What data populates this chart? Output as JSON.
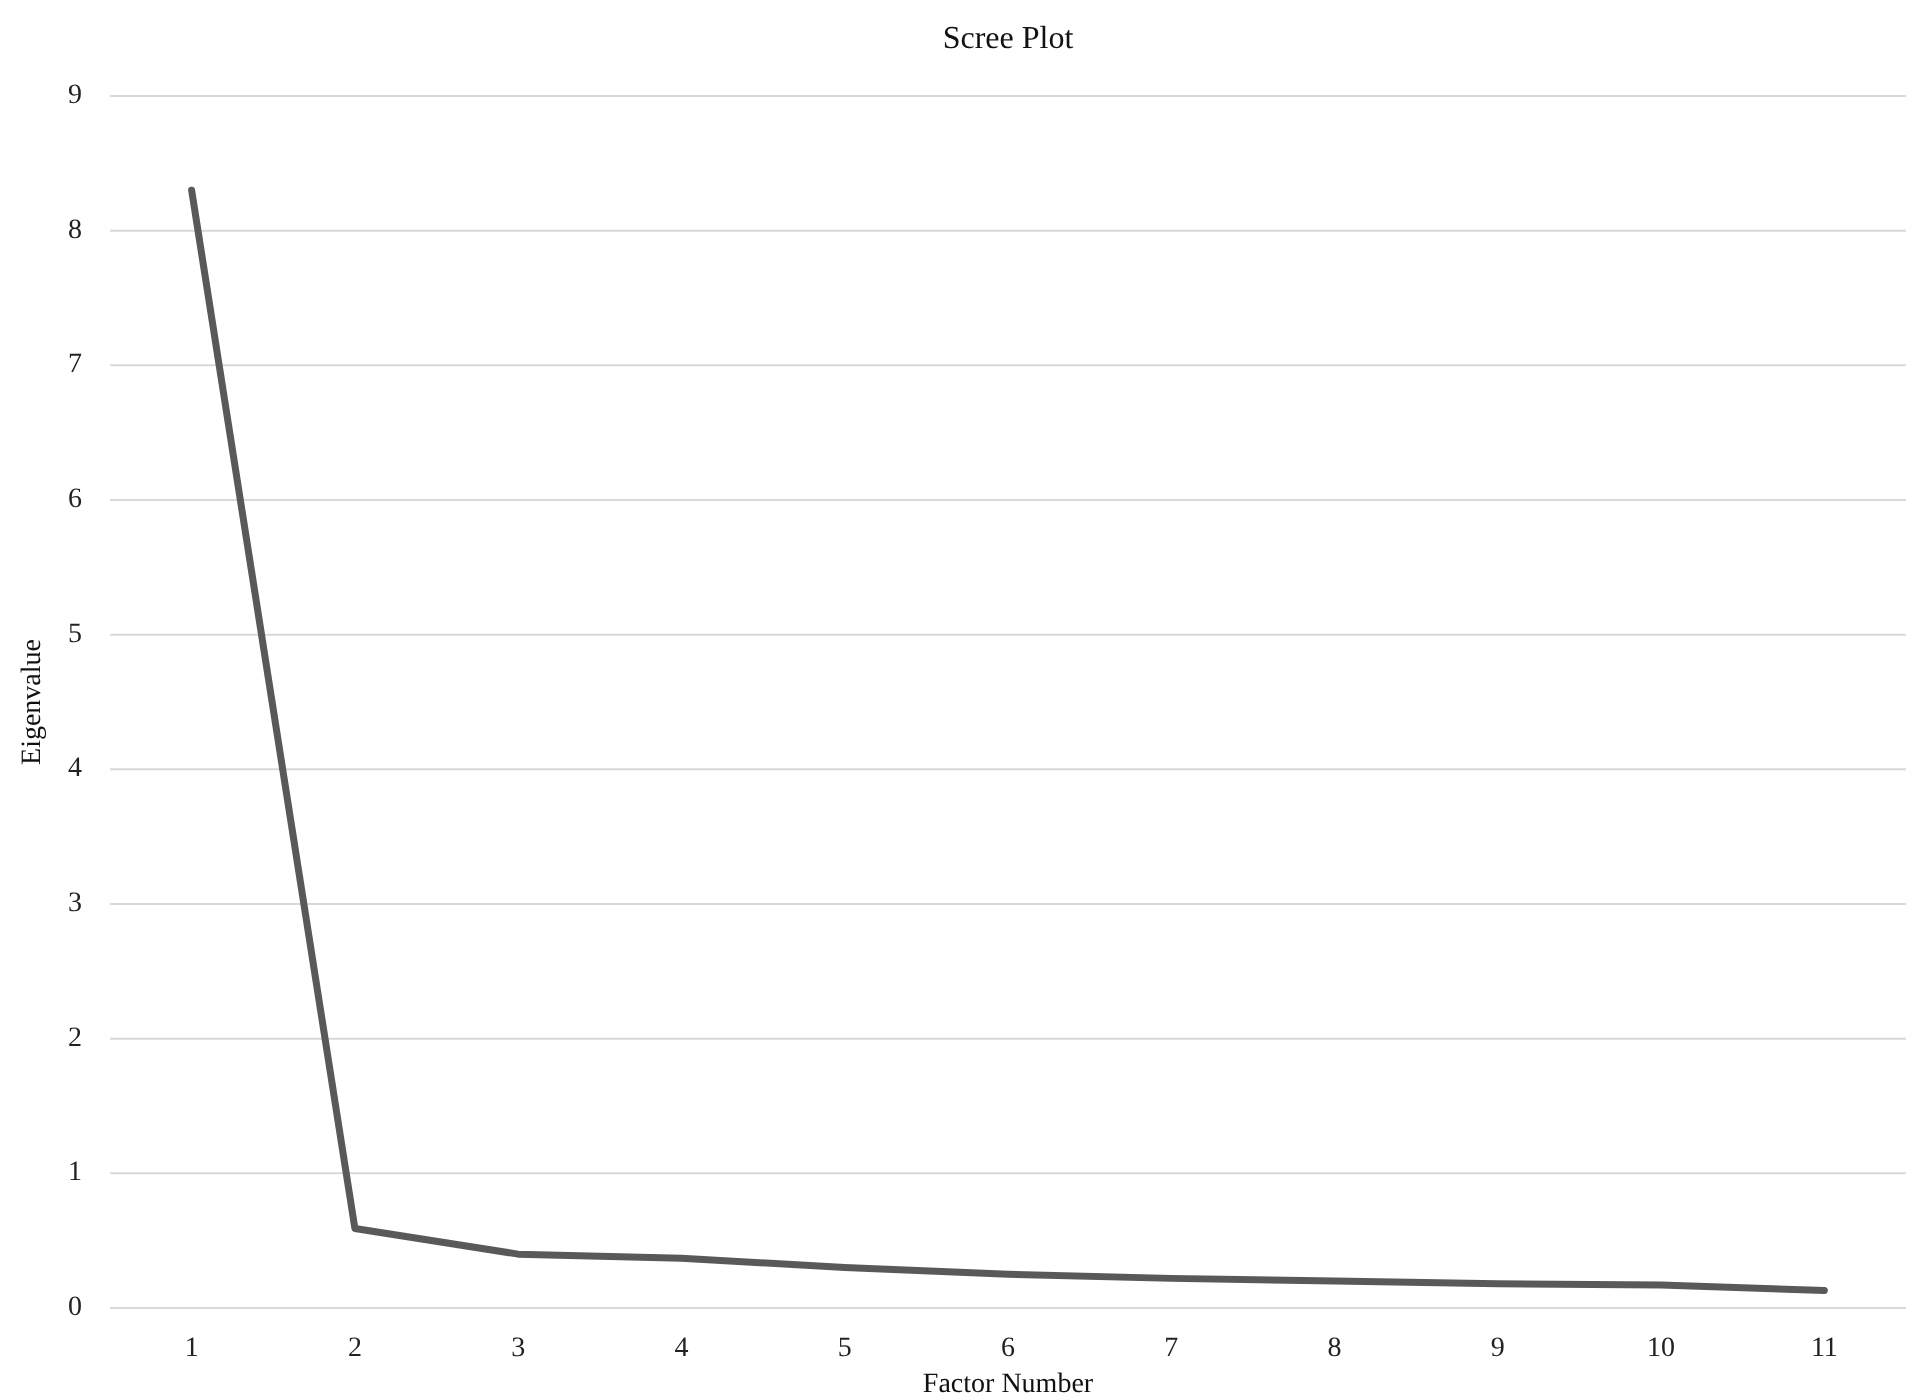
{
  "chart_data": {
    "type": "line",
    "title": "Scree Plot",
    "xlabel": "Factor Number",
    "ylabel": "Eigenvalue",
    "categories": [
      "1",
      "2",
      "3",
      "4",
      "5",
      "6",
      "7",
      "8",
      "9",
      "10",
      "11"
    ],
    "series": [
      {
        "color": "#595959",
        "values": [
          8.3,
          0.59,
          0.4,
          0.37,
          0.3,
          0.25,
          0.22,
          0.2,
          0.18,
          0.17,
          0.13
        ]
      }
    ],
    "ylim": [
      0,
      9
    ],
    "yticks": [
      0,
      1,
      2,
      3,
      4,
      5,
      6,
      7,
      8,
      9
    ],
    "grid": "y",
    "marker": "none",
    "line_style": "solid"
  }
}
